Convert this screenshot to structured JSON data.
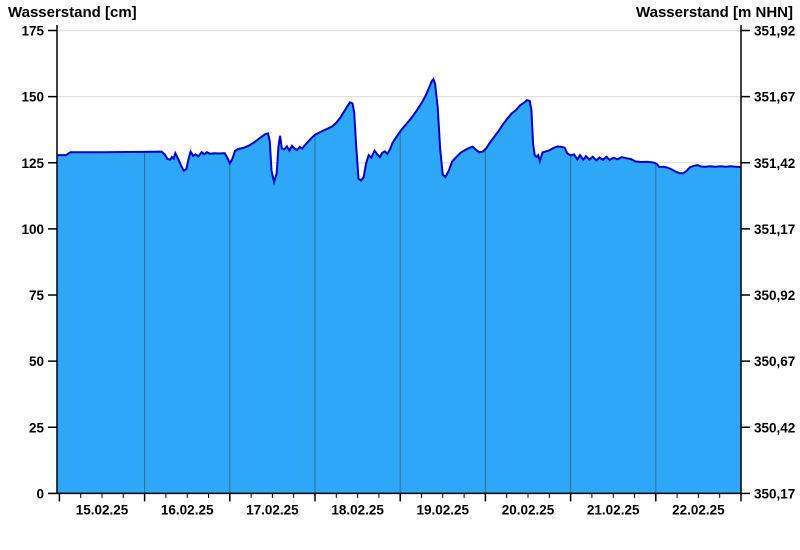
{
  "header": {
    "title_left": "Wasserstand [cm]",
    "title_right": "Wasserstand [m NHN]"
  },
  "chart_data": {
    "type": "area",
    "series_name": "Wasserstand",
    "title_left": "Wasserstand [cm]",
    "title_right": "Wasserstand [m NHN]",
    "categories": [
      "15.02.25",
      "16.02.25",
      "17.02.25",
      "18.02.25",
      "19.02.25",
      "20.02.25",
      "21.02.25",
      "22.02.25"
    ],
    "x_minor_tick_hours": 6,
    "y_left_label": "Wasserstand [cm]",
    "y_left_ticks": [
      175,
      150,
      125,
      100,
      75,
      50,
      25,
      0
    ],
    "y_left_lim": [
      0,
      175
    ],
    "y_right_label": "Wasserstand [m NHN]",
    "y_right_ticks": [
      "351,92",
      "351,67",
      "351,42",
      "351,17",
      "350,92",
      "350,67",
      "350,42",
      "350,17"
    ],
    "y_right_lim": [
      350.17,
      351.92
    ],
    "grid": {
      "horizontal": true,
      "vertical_day_boundaries": true
    },
    "colors": {
      "fill": "#2EA7F8",
      "line": "#0000CD",
      "h_grid": "#DCDCDC",
      "v_grid": "rgba(60,60,60,0.55)",
      "axis": "#000000",
      "background": "#FFFFFF"
    },
    "points_unit": "x = days since 15.02.25 00:00, y = cm",
    "points": [
      [
        -0.03,
        127.9
      ],
      [
        0.08,
        127.9
      ],
      [
        0.1,
        128.4
      ],
      [
        0.13,
        129.0
      ],
      [
        0.5,
        129.0
      ],
      [
        1.0,
        129.1
      ],
      [
        1.2,
        129.2
      ],
      [
        1.24,
        128.0
      ],
      [
        1.27,
        126.4
      ],
      [
        1.3,
        126.2
      ],
      [
        1.32,
        127.2
      ],
      [
        1.34,
        126.6
      ],
      [
        1.36,
        128.6
      ],
      [
        1.4,
        126.0
      ],
      [
        1.43,
        123.8
      ],
      [
        1.46,
        122.0
      ],
      [
        1.49,
        122.6
      ],
      [
        1.52,
        127.0
      ],
      [
        1.54,
        129.2
      ],
      [
        1.57,
        127.6
      ],
      [
        1.6,
        128.2
      ],
      [
        1.63,
        127.4
      ],
      [
        1.67,
        129.0
      ],
      [
        1.7,
        128.2
      ],
      [
        1.73,
        129.0
      ],
      [
        1.77,
        128.4
      ],
      [
        1.82,
        128.6
      ],
      [
        1.88,
        128.5
      ],
      [
        1.94,
        128.6
      ],
      [
        1.97,
        127.0
      ],
      [
        2.0,
        124.8
      ],
      [
        2.03,
        126.5
      ],
      [
        2.06,
        129.5
      ],
      [
        2.1,
        130.2
      ],
      [
        2.16,
        130.6
      ],
      [
        2.22,
        131.4
      ],
      [
        2.28,
        132.6
      ],
      [
        2.33,
        133.8
      ],
      [
        2.38,
        135.0
      ],
      [
        2.42,
        135.9
      ],
      [
        2.45,
        136.1
      ],
      [
        2.47,
        133.0
      ],
      [
        2.49,
        122.0
      ],
      [
        2.52,
        117.8
      ],
      [
        2.55,
        121.0
      ],
      [
        2.57,
        131.0
      ],
      [
        2.59,
        135.2
      ],
      [
        2.61,
        130.5
      ],
      [
        2.64,
        130.0
      ],
      [
        2.67,
        131.2
      ],
      [
        2.7,
        129.6
      ],
      [
        2.73,
        131.4
      ],
      [
        2.76,
        130.4
      ],
      [
        2.79,
        129.8
      ],
      [
        2.82,
        131.0
      ],
      [
        2.85,
        130.4
      ],
      [
        2.88,
        131.6
      ],
      [
        2.92,
        133.0
      ],
      [
        2.96,
        134.4
      ],
      [
        3.0,
        135.6
      ],
      [
        3.05,
        136.4
      ],
      [
        3.1,
        137.2
      ],
      [
        3.15,
        137.9
      ],
      [
        3.2,
        138.7
      ],
      [
        3.25,
        140.1
      ],
      [
        3.3,
        142.2
      ],
      [
        3.34,
        144.3
      ],
      [
        3.38,
        146.4
      ],
      [
        3.41,
        147.8
      ],
      [
        3.44,
        147.4
      ],
      [
        3.46,
        144.0
      ],
      [
        3.48,
        133.0
      ],
      [
        3.51,
        119.0
      ],
      [
        3.54,
        118.3
      ],
      [
        3.57,
        119.5
      ],
      [
        3.6,
        124.8
      ],
      [
        3.63,
        127.9
      ],
      [
        3.66,
        126.9
      ],
      [
        3.7,
        129.6
      ],
      [
        3.73,
        128.2
      ],
      [
        3.76,
        127.1
      ],
      [
        3.79,
        128.8
      ],
      [
        3.82,
        129.3
      ],
      [
        3.85,
        128.3
      ],
      [
        3.88,
        130.1
      ],
      [
        3.91,
        132.5
      ],
      [
        3.96,
        135.0
      ],
      [
        4.01,
        137.3
      ],
      [
        4.07,
        139.6
      ],
      [
        4.13,
        141.9
      ],
      [
        4.19,
        144.6
      ],
      [
        4.25,
        147.5
      ],
      [
        4.3,
        150.5
      ],
      [
        4.34,
        153.5
      ],
      [
        4.37,
        155.8
      ],
      [
        4.39,
        156.6
      ],
      [
        4.41,
        154.8
      ],
      [
        4.44,
        146.0
      ],
      [
        4.47,
        130.0
      ],
      [
        4.5,
        120.5
      ],
      [
        4.53,
        119.6
      ],
      [
        4.57,
        122.0
      ],
      [
        4.61,
        125.5
      ],
      [
        4.66,
        127.2
      ],
      [
        4.71,
        128.8
      ],
      [
        4.76,
        129.8
      ],
      [
        4.81,
        130.6
      ],
      [
        4.85,
        131.1
      ],
      [
        4.89,
        129.9
      ],
      [
        4.93,
        128.9
      ],
      [
        4.97,
        129.2
      ],
      [
        5.01,
        130.5
      ],
      [
        5.05,
        132.5
      ],
      [
        5.1,
        134.6
      ],
      [
        5.15,
        136.8
      ],
      [
        5.2,
        139.2
      ],
      [
        5.26,
        141.8
      ],
      [
        5.31,
        143.7
      ],
      [
        5.36,
        145.0
      ],
      [
        5.41,
        146.8
      ],
      [
        5.45,
        147.6
      ],
      [
        5.49,
        148.7
      ],
      [
        5.52,
        148.4
      ],
      [
        5.54,
        145.0
      ],
      [
        5.56,
        132.0
      ],
      [
        5.58,
        127.8
      ],
      [
        5.6,
        127.2
      ],
      [
        5.62,
        127.9
      ],
      [
        5.64,
        125.6
      ],
      [
        5.67,
        128.9
      ],
      [
        5.71,
        129.3
      ],
      [
        5.75,
        129.7
      ],
      [
        5.8,
        130.6
      ],
      [
        5.85,
        131.2
      ],
      [
        5.89,
        131.0
      ],
      [
        5.93,
        130.7
      ],
      [
        5.96,
        128.6
      ],
      [
        6.0,
        127.8
      ],
      [
        6.04,
        128.2
      ],
      [
        6.08,
        126.2
      ],
      [
        6.11,
        127.9
      ],
      [
        6.15,
        126.1
      ],
      [
        6.18,
        127.5
      ],
      [
        6.22,
        126.2
      ],
      [
        6.26,
        127.3
      ],
      [
        6.3,
        125.9
      ],
      [
        6.34,
        127.0
      ],
      [
        6.38,
        126.1
      ],
      [
        6.42,
        127.3
      ],
      [
        6.46,
        126.0
      ],
      [
        6.5,
        126.9
      ],
      [
        6.55,
        126.3
      ],
      [
        6.6,
        127.1
      ],
      [
        6.66,
        126.7
      ],
      [
        6.71,
        126.4
      ],
      [
        6.76,
        125.5
      ],
      [
        6.82,
        125.3
      ],
      [
        6.9,
        125.4
      ],
      [
        6.97,
        125.1
      ],
      [
        7.01,
        124.6
      ],
      [
        7.04,
        123.4
      ],
      [
        7.09,
        123.5
      ],
      [
        7.13,
        123.2
      ],
      [
        7.18,
        122.6
      ],
      [
        7.23,
        121.7
      ],
      [
        7.28,
        121.0
      ],
      [
        7.32,
        121.0
      ],
      [
        7.36,
        121.9
      ],
      [
        7.4,
        123.3
      ],
      [
        7.45,
        123.9
      ],
      [
        7.49,
        124.1
      ],
      [
        7.53,
        123.6
      ],
      [
        7.58,
        123.5
      ],
      [
        7.64,
        123.7
      ],
      [
        7.7,
        123.5
      ],
      [
        7.76,
        123.7
      ],
      [
        7.82,
        123.5
      ],
      [
        7.88,
        123.7
      ],
      [
        7.94,
        123.5
      ],
      [
        8.0,
        123.4
      ]
    ]
  }
}
